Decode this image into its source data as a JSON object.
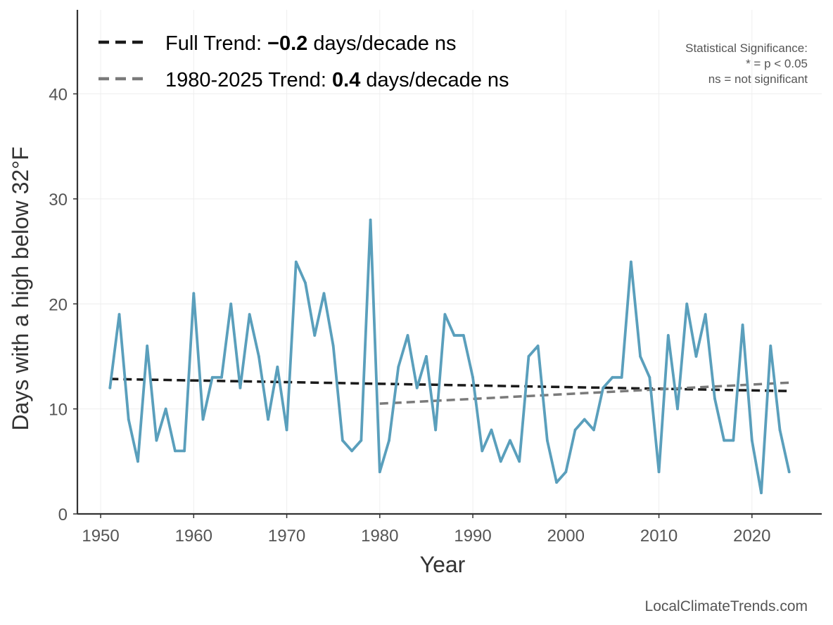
{
  "chart_data": {
    "type": "line",
    "xlabel": "Year",
    "ylabel": "Days with a high below 32°F",
    "xlim": [
      1947.5,
      2027.5
    ],
    "ylim": [
      0,
      48
    ],
    "xticks": [
      1950,
      1960,
      1970,
      1980,
      1990,
      2000,
      2010,
      2020
    ],
    "yticks": [
      0,
      10,
      20,
      30,
      40
    ],
    "grid": true,
    "colors": {
      "series": "#5a9fbc",
      "full_trend": "#1a1a1a",
      "recent_trend": "#7a7a7a"
    },
    "series": [
      {
        "name": "Days with a high below 32°F",
        "x": [
          1951,
          1952,
          1953,
          1954,
          1955,
          1956,
          1957,
          1958,
          1959,
          1960,
          1961,
          1962,
          1963,
          1964,
          1965,
          1966,
          1967,
          1968,
          1969,
          1970,
          1971,
          1972,
          1973,
          1974,
          1975,
          1976,
          1977,
          1978,
          1979,
          1980,
          1981,
          1982,
          1983,
          1984,
          1985,
          1986,
          1987,
          1988,
          1989,
          1990,
          1991,
          1992,
          1993,
          1994,
          1995,
          1996,
          1997,
          1998,
          1999,
          2000,
          2001,
          2002,
          2003,
          2004,
          2005,
          2006,
          2007,
          2008,
          2009,
          2010,
          2011,
          2012,
          2013,
          2014,
          2015,
          2016,
          2017,
          2018,
          2019,
          2020,
          2021,
          2022,
          2023,
          2024
        ],
        "values": [
          12,
          19,
          9,
          5,
          16,
          7,
          10,
          6,
          6,
          21,
          9,
          13,
          13,
          20,
          12,
          19,
          15,
          9,
          14,
          8,
          24,
          22,
          17,
          21,
          16,
          7,
          6,
          7,
          28,
          4,
          7,
          14,
          17,
          12,
          15,
          8,
          19,
          17,
          17,
          13,
          6,
          8,
          5,
          7,
          5,
          15,
          16,
          7,
          3,
          4,
          8,
          9,
          8,
          12,
          13,
          13,
          24,
          15,
          13,
          4,
          17,
          10,
          20,
          15,
          19,
          11,
          7,
          7,
          18,
          7,
          2,
          16,
          8,
          4
        ]
      }
    ],
    "trends": [
      {
        "name": "Full Trend",
        "style": "dashed",
        "x": [
          1951,
          2024
        ],
        "y": [
          12.85,
          11.7
        ]
      },
      {
        "name": "1980-2025 Trend",
        "style": "dashed",
        "x": [
          1980,
          2024
        ],
        "y": [
          10.5,
          12.5
        ]
      }
    ],
    "legend": {
      "placement": "top-left",
      "items": [
        {
          "prefix": "Full Trend: ",
          "value": "−0.2",
          "suffix": " days/decade ns"
        },
        {
          "prefix": "1980-2025 Trend: ",
          "value": "0.4",
          "suffix": " days/decade ns"
        }
      ]
    },
    "significance_note": [
      "Statistical Significance:",
      "* = p < 0.05",
      "ns = not significant"
    ],
    "credit": "LocalClimateTrends.com"
  }
}
